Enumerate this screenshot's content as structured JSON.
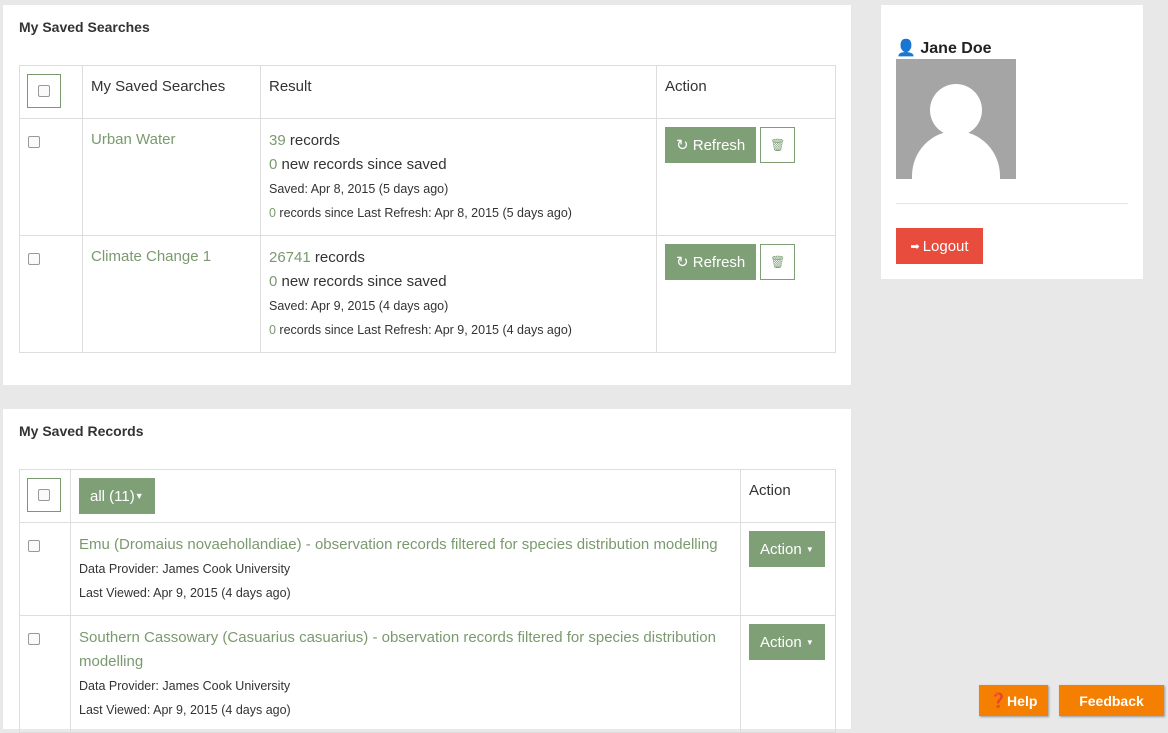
{
  "saved_searches": {
    "title": "My Saved Searches",
    "headers": [
      "My Saved Searches",
      "Result",
      "Action"
    ],
    "rows": [
      {
        "name": "Urban Water",
        "count": "39",
        "count_label": " records",
        "new": "0",
        "new_label": " new records since saved",
        "saved": "Saved: Apr 8, 2015 (5 days ago)",
        "refresh_count": "0",
        "refresh_label": " records since Last Refresh: Apr 8, 2015 (5 days ago)"
      },
      {
        "name": "Climate Change 1",
        "count": "26741",
        "count_label": " records",
        "new": "0",
        "new_label": " new records since saved",
        "saved": "Saved: Apr 9, 2015 (4 days ago)",
        "refresh_count": "0",
        "refresh_label": " records since Last Refresh: Apr 9, 2015 (4 days ago)"
      }
    ],
    "refresh_label": "Refresh"
  },
  "saved_records": {
    "title": "My Saved Records",
    "filter_label": "all (11)",
    "action_header": "Action",
    "rows": [
      {
        "title": "Emu (Dromaius novaehollandiae) - observation records filtered for species distribution modelling",
        "provider": "Data Provider: James Cook University",
        "viewed": "Last Viewed: Apr 9, 2015 (4 days ago)"
      },
      {
        "title": "Southern Cassowary (Casuarius casuarius) - observation records filtered for species distribution modelling",
        "provider": "Data Provider: James Cook University",
        "viewed": "Last Viewed: Apr 9, 2015 (4 days ago)"
      }
    ],
    "action_label": "Action"
  },
  "profile": {
    "name": "Jane Doe",
    "logout_label": "Logout"
  },
  "footer": {
    "help_label": "Help",
    "feedback_label": "Feedback"
  },
  "colors": {
    "accent": "#7f9f77",
    "logout": "#e74c3c",
    "orange": "#f47f00"
  }
}
